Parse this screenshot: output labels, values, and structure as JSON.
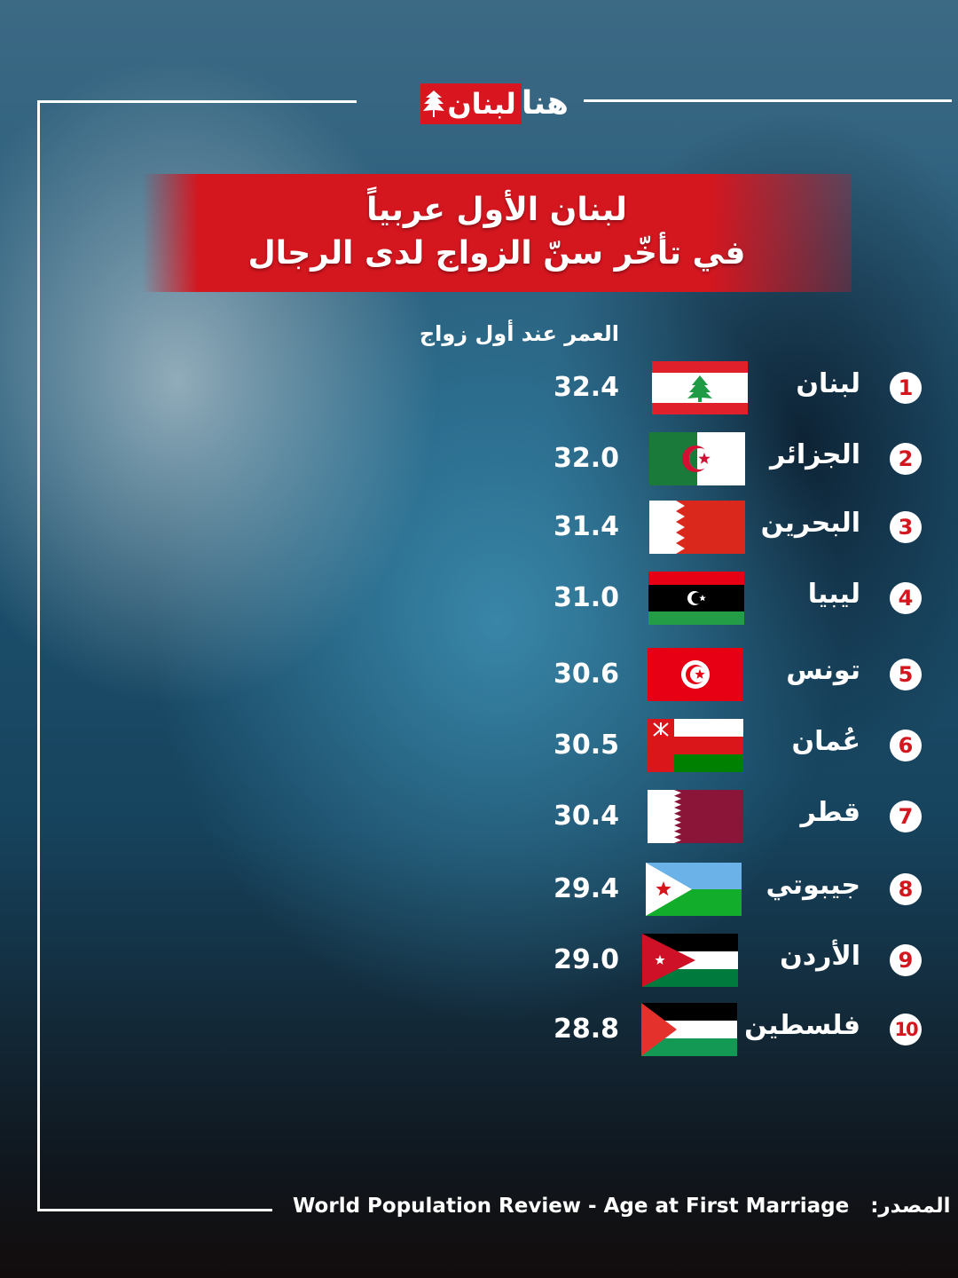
{
  "logo": {
    "text": "هنا لبنان",
    "part_1": "هنا",
    "part_2": "لبنان"
  },
  "header": {
    "title_line_1": "لبنان الأول عربياً",
    "title_line_2": "في تأخّر سنّ الزواج لدى الرجال"
  },
  "colors": {
    "accent_red": "#d4161f",
    "logo_green": "#3cb44a"
  },
  "chart_data": {
    "type": "table",
    "title": "لبنان الأول عربياً في تأخّر سنّ الزواج لدى الرجال",
    "value_label": "العمر عند أول زواج",
    "rows": [
      {
        "rank": "1",
        "country": "لبنان",
        "flag": "lebanon",
        "value": "32.4"
      },
      {
        "rank": "2",
        "country": "الجزائر",
        "flag": "algeria",
        "value": "32.0"
      },
      {
        "rank": "3",
        "country": "البحرين",
        "flag": "bahrain",
        "value": "31.4"
      },
      {
        "rank": "4",
        "country": "ليبيا",
        "flag": "libya",
        "value": "31.0"
      },
      {
        "rank": "5",
        "country": "تونس",
        "flag": "tunisia",
        "value": "30.6"
      },
      {
        "rank": "6",
        "country": "عُمان",
        "flag": "oman",
        "value": "30.5"
      },
      {
        "rank": "7",
        "country": "قطر",
        "flag": "qatar",
        "value": "30.4"
      },
      {
        "rank": "8",
        "country": "جيبوتي",
        "flag": "djibouti",
        "value": "29.4"
      },
      {
        "rank": "9",
        "country": "الأردن",
        "flag": "jordan",
        "value": "29.0"
      },
      {
        "rank": "10",
        "country": "فلسطين",
        "flag": "palestine",
        "value": "28.8"
      }
    ]
  },
  "footer": {
    "source_label": "المصدر:",
    "source_text": "World Population Review - Age at First Marriage"
  }
}
